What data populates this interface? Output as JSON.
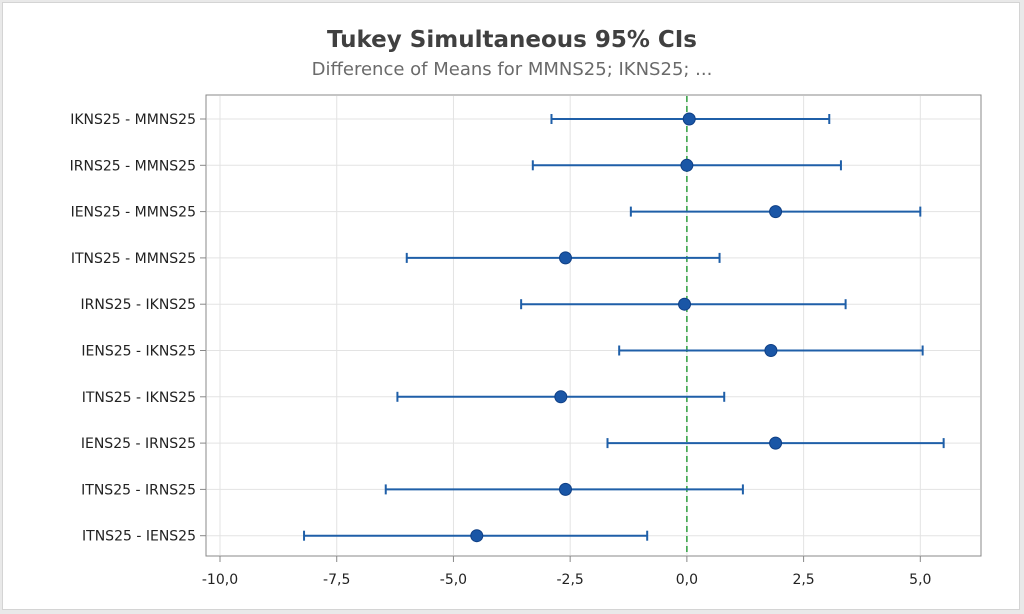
{
  "chart_data": {
    "type": "interval",
    "title": "Tukey Simultaneous 95% CIs",
    "subtitle": "Difference of Means for MMNS25; IKNS25; ...",
    "xlim": [
      -10.3,
      6.3
    ],
    "xticks": [
      -10,
      -7.5,
      -5,
      -2.5,
      0,
      2.5,
      5
    ],
    "xtick_labels": [
      "-10,0",
      "-7,5",
      "-5,0",
      "-2,5",
      "0,0",
      "2,5",
      "5,0"
    ],
    "reference_line": 0,
    "grid": true,
    "categories": [
      "IKNS25 - MMNS25",
      "IRNS25 - MMNS25",
      "IENS25 - MMNS25",
      "ITNS25 - MMNS25",
      "IRNS25 - IKNS25",
      "IENS25 - IKNS25",
      "ITNS25 - IKNS25",
      "IENS25 - IRNS25",
      "ITNS25 - IRNS25",
      "ITNS25 - IENS25"
    ],
    "estimates": [
      0.05,
      0.0,
      1.9,
      -2.6,
      -0.05,
      1.8,
      -2.7,
      1.9,
      -2.6,
      -4.5
    ],
    "lower": [
      -2.9,
      -3.3,
      -1.2,
      -6.0,
      -3.55,
      -1.45,
      -6.2,
      -1.7,
      -6.45,
      -8.2
    ],
    "upper": [
      3.05,
      3.3,
      5.0,
      0.7,
      3.4,
      5.05,
      0.8,
      5.5,
      1.2,
      -0.85
    ],
    "colors": {
      "interval": "#1f5fa8",
      "reference": "#2e9e3e",
      "grid": "#e3e3e3",
      "axis": "#888888"
    }
  }
}
